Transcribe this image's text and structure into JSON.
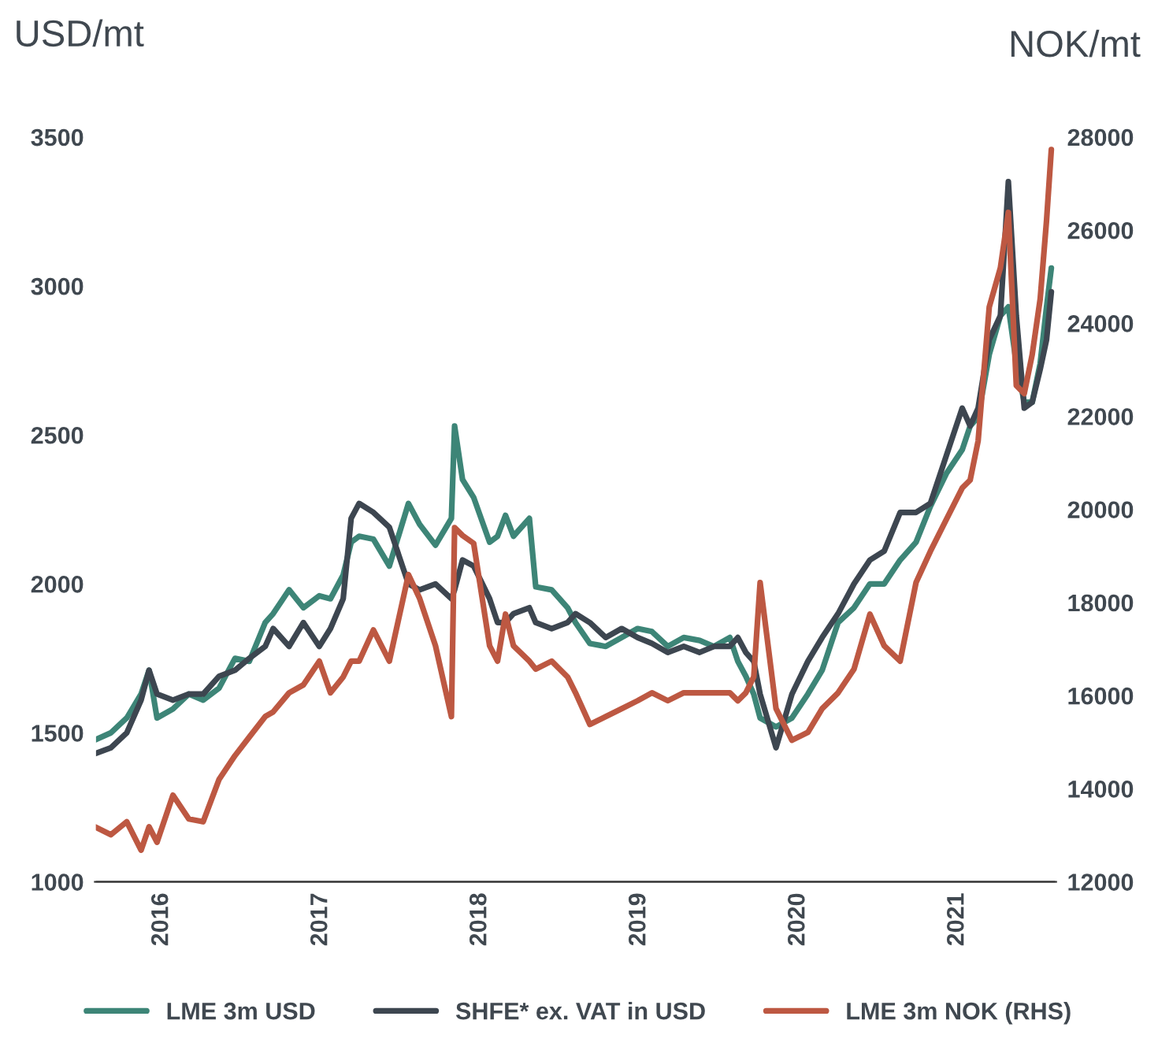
{
  "chart_data": {
    "type": "line",
    "ylabel": "USD/mt",
    "y2label": "NOK/mt",
    "x": [
      2015.58,
      2015.68,
      2015.78,
      2015.87,
      2015.92,
      2015.97,
      2016.07,
      2016.17,
      2016.26,
      2016.36,
      2016.46,
      2016.55,
      2016.65,
      2016.7,
      2016.8,
      2016.89,
      2016.99,
      2017.06,
      2017.14,
      2017.19,
      2017.24,
      2017.33,
      2017.43,
      2017.55,
      2017.62,
      2017.72,
      2017.82,
      2017.84,
      2017.89,
      2017.96,
      2018.06,
      2018.11,
      2018.16,
      2018.21,
      2018.31,
      2018.35,
      2018.45,
      2018.55,
      2018.6,
      2018.69,
      2018.79,
      2018.89,
      2018.99,
      2019.08,
      2019.18,
      2019.28,
      2019.38,
      2019.47,
      2019.57,
      2019.62,
      2019.67,
      2019.72,
      2019.76,
      2019.86,
      2019.96,
      2020.06,
      2020.15,
      2020.25,
      2020.35,
      2020.45,
      2020.54,
      2020.64,
      2020.74,
      2020.83,
      2020.93,
      2021.03,
      2021.08,
      2021.13,
      2021.2,
      2021.27,
      2021.32,
      2021.37,
      2021.42,
      2021.47,
      2021.52,
      2021.56,
      2021.59
    ],
    "series": [
      {
        "name": "LME 3m USD",
        "color": "#3d8577",
        "values": [
          1476,
          1500,
          1550,
          1630,
          1710,
          1550,
          1580,
          1630,
          1610,
          1650,
          1750,
          1740,
          1870,
          1900,
          1980,
          1920,
          1960,
          1950,
          2030,
          2140,
          2160,
          2150,
          2060,
          2270,
          2200,
          2130,
          2220,
          2530,
          2350,
          2290,
          2140,
          2160,
          2230,
          2160,
          2220,
          1990,
          1980,
          1920,
          1870,
          1800,
          1790,
          1820,
          1850,
          1840,
          1790,
          1820,
          1810,
          1790,
          1820,
          1740,
          1690,
          1630,
          1550,
          1520,
          1550,
          1630,
          1710,
          1870,
          1920,
          2000,
          2000,
          2080,
          2140,
          2260,
          2370,
          2450,
          2530,
          2560,
          2770,
          2900,
          2930,
          2740,
          2610,
          2610,
          2740,
          2930,
          3060
        ]
      },
      {
        "name": "SHFE* ex. VAT in USD",
        "color": "#3d4650",
        "values": [
          1430,
          1450,
          1500,
          1610,
          1710,
          1630,
          1610,
          1630,
          1630,
          1690,
          1710,
          1750,
          1790,
          1850,
          1790,
          1870,
          1790,
          1850,
          1950,
          2220,
          2270,
          2240,
          2190,
          2000,
          1980,
          2000,
          1950,
          1980,
          2080,
          2060,
          1950,
          1870,
          1870,
          1900,
          1920,
          1870,
          1850,
          1870,
          1900,
          1870,
          1820,
          1850,
          1820,
          1800,
          1770,
          1790,
          1770,
          1790,
          1790,
          1820,
          1770,
          1740,
          1630,
          1450,
          1630,
          1740,
          1820,
          1900,
          2000,
          2080,
          2110,
          2240,
          2240,
          2270,
          2430,
          2590,
          2530,
          2590,
          2820,
          2900,
          3350,
          2900,
          2590,
          2610,
          2720,
          2820,
          2980
        ]
      },
      {
        "name": "LME 3m NOK (RHS)",
        "color": "#bd5842",
        "axis": "y2",
        "values": [
          13180,
          13010,
          13290,
          12680,
          13180,
          12850,
          13860,
          13350,
          13290,
          14200,
          14710,
          15110,
          15550,
          15650,
          16060,
          16230,
          16740,
          16060,
          16400,
          16740,
          16740,
          17410,
          16740,
          18600,
          18090,
          17070,
          15550,
          19610,
          19440,
          19270,
          17070,
          16740,
          17750,
          17070,
          16740,
          16570,
          16740,
          16400,
          16060,
          15380,
          15550,
          15720,
          15890,
          16060,
          15890,
          16060,
          16060,
          16060,
          16060,
          15890,
          16060,
          16400,
          18430,
          15720,
          15040,
          15210,
          15720,
          16060,
          16570,
          17750,
          17070,
          16740,
          18430,
          19100,
          19780,
          20460,
          20630,
          21470,
          24350,
          25190,
          26380,
          22660,
          22490,
          23330,
          24520,
          26210,
          27730
        ]
      }
    ],
    "xlim": [
      2015.58,
      2021.62
    ],
    "xticks": [
      2016,
      2017,
      2018,
      2019,
      2020,
      2021
    ],
    "ylim": [
      1000,
      3500
    ],
    "yticks": [
      1000,
      1500,
      2000,
      2500,
      3000,
      3500
    ],
    "y2lim": [
      12000,
      28000
    ],
    "y2ticks": [
      12000,
      14000,
      16000,
      18000,
      20000,
      22000,
      24000,
      26000,
      28000
    ],
    "grid": false,
    "legend": "bottom",
    "line_style": "solid",
    "marker": "none"
  }
}
